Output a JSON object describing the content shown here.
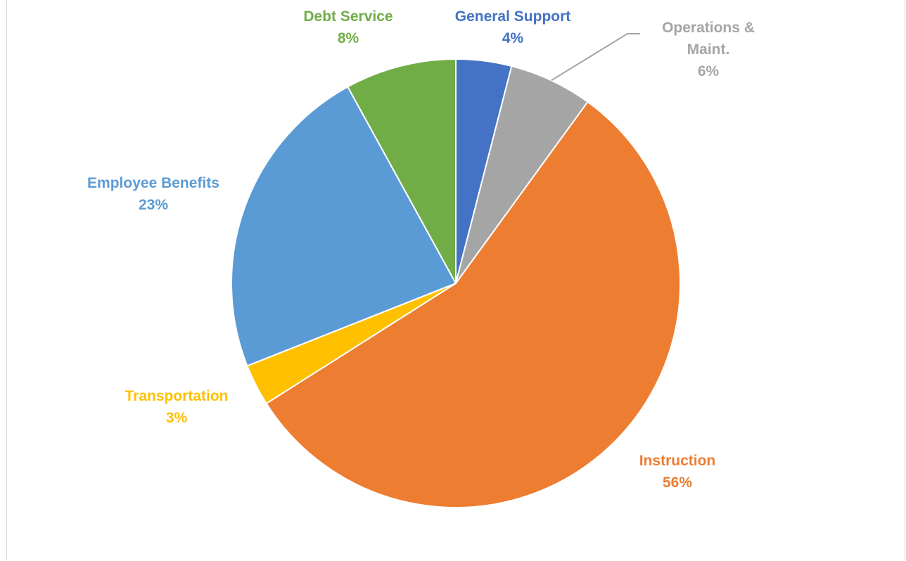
{
  "chart_data": {
    "type": "pie",
    "title": "",
    "start_angle_deg": 0,
    "direction": "clockwise",
    "legend": "none",
    "series": [
      {
        "values": [
          4,
          6,
          56,
          3,
          23,
          8
        ]
      }
    ],
    "slices": [
      {
        "category": "General Support",
        "value": 4,
        "percent_label": "4%",
        "color": "#4472C4"
      },
      {
        "category": "Operations & Maint.",
        "value": 6,
        "percent_label": "6%",
        "color": "#A5A5A5",
        "label_lines": [
          "Operations &",
          "Maint."
        ]
      },
      {
        "category": "Instruction",
        "value": 56,
        "percent_label": "56%",
        "color": "#ED7D31"
      },
      {
        "category": "Transportation",
        "value": 3,
        "percent_label": "3%",
        "color": "#FFC000"
      },
      {
        "category": "Employee Benefits",
        "value": 23,
        "percent_label": "23%",
        "color": "#5B9BD5"
      },
      {
        "category": "Debt Service",
        "value": 8,
        "percent_label": "8%",
        "color": "#70AD47"
      }
    ]
  }
}
